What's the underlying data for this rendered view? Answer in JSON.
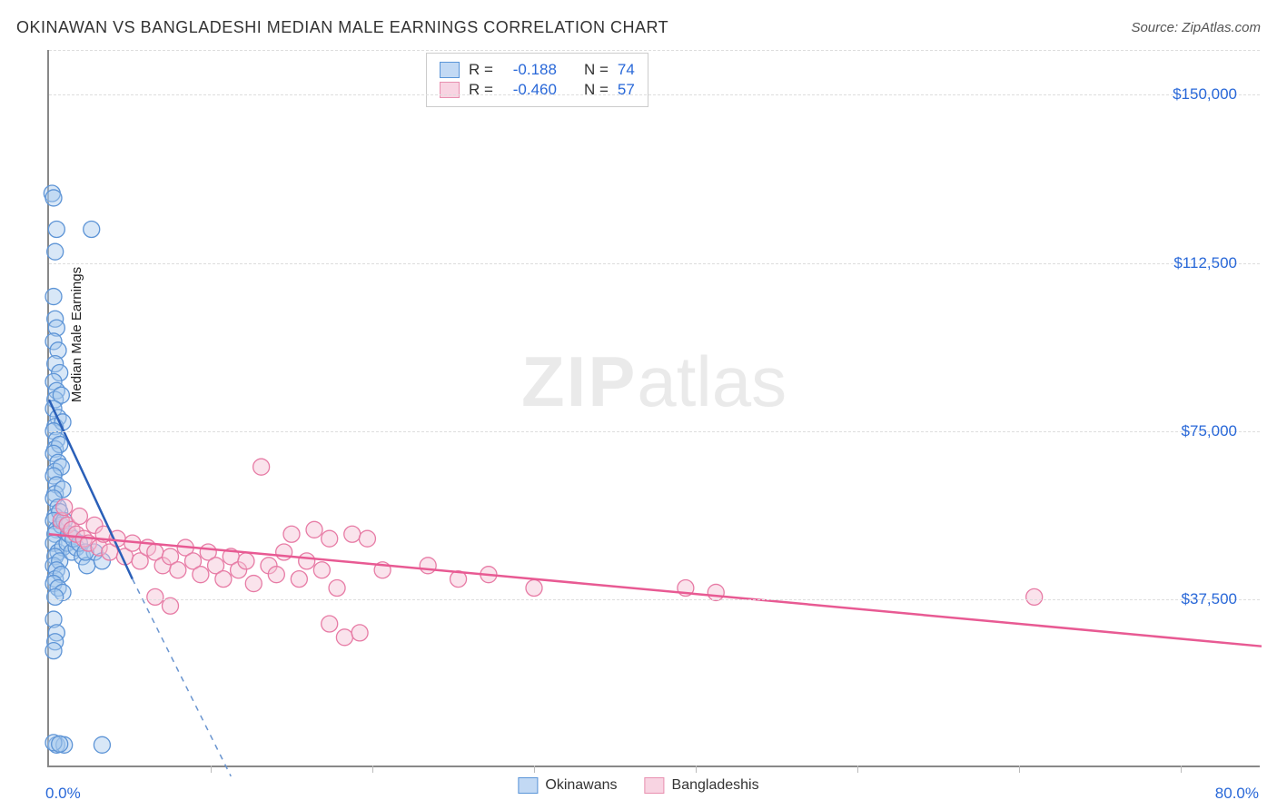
{
  "header": {
    "title": "OKINAWAN VS BANGLADESHI MEDIAN MALE EARNINGS CORRELATION CHART",
    "source_label": "Source: ZipAtlas.com"
  },
  "watermark": {
    "zip": "ZIP",
    "rest": "atlas"
  },
  "chart": {
    "type": "scatter",
    "y_axis_label": "Median Male Earnings",
    "xlim": [
      0,
      80
    ],
    "ylim": [
      0,
      160000
    ],
    "x_tick_step_pct": 13.33,
    "y_ticks": [
      37500,
      75000,
      112500,
      150000
    ],
    "y_tick_labels": [
      "$37,500",
      "$75,000",
      "$112,500",
      "$150,000"
    ],
    "x_min_label": "0.0%",
    "x_max_label": "80.0%",
    "background_color": "#ffffff",
    "grid_color": "#dddddd",
    "axis_color": "#888888",
    "marker_radius": 9,
    "marker_opacity": 0.45,
    "series": [
      {
        "name": "Okinawans",
        "color_fill": "#a8c9ed",
        "color_stroke": "#5d94d6",
        "R": "-0.188",
        "N": "74",
        "regression": {
          "x1": 0,
          "y1": 82000,
          "x2": 5.5,
          "y2": 42000,
          "solid_until_x": 5.5,
          "dash_to_x": 12,
          "dash_to_y": -2000,
          "width": 2.5
        },
        "points": [
          [
            0.2,
            128000
          ],
          [
            0.3,
            127000
          ],
          [
            0.5,
            120000
          ],
          [
            2.8,
            120000
          ],
          [
            0.4,
            115000
          ],
          [
            0.3,
            105000
          ],
          [
            0.4,
            100000
          ],
          [
            0.5,
            98000
          ],
          [
            0.3,
            95000
          ],
          [
            0.6,
            93000
          ],
          [
            0.4,
            90000
          ],
          [
            0.7,
            88000
          ],
          [
            0.3,
            86000
          ],
          [
            0.5,
            84000
          ],
          [
            0.4,
            82000
          ],
          [
            0.8,
            83000
          ],
          [
            0.3,
            80000
          ],
          [
            0.6,
            78000
          ],
          [
            0.4,
            76000
          ],
          [
            0.9,
            77000
          ],
          [
            0.3,
            75000
          ],
          [
            0.5,
            73000
          ],
          [
            0.4,
            71000
          ],
          [
            0.7,
            72000
          ],
          [
            0.3,
            70000
          ],
          [
            0.6,
            68000
          ],
          [
            0.4,
            66000
          ],
          [
            0.8,
            67000
          ],
          [
            0.3,
            65000
          ],
          [
            0.5,
            63000
          ],
          [
            0.4,
            61000
          ],
          [
            0.9,
            62000
          ],
          [
            0.3,
            60000
          ],
          [
            0.6,
            58000
          ],
          [
            0.4,
            56000
          ],
          [
            0.7,
            57000
          ],
          [
            0.3,
            55000
          ],
          [
            0.5,
            53000
          ],
          [
            0.8,
            54000
          ],
          [
            0.4,
            52000
          ],
          [
            0.3,
            50000
          ],
          [
            0.6,
            48000
          ],
          [
            0.9,
            49000
          ],
          [
            0.4,
            47000
          ],
          [
            0.3,
            45000
          ],
          [
            0.7,
            46000
          ],
          [
            0.5,
            44000
          ],
          [
            0.4,
            42000
          ],
          [
            0.8,
            43000
          ],
          [
            0.3,
            41000
          ],
          [
            0.6,
            40000
          ],
          [
            0.9,
            39000
          ],
          [
            0.4,
            38000
          ],
          [
            1.2,
            50000
          ],
          [
            1.5,
            48000
          ],
          [
            1.8,
            49000
          ],
          [
            2.2,
            47000
          ],
          [
            2.5,
            45000
          ],
          [
            3.0,
            48000
          ],
          [
            3.5,
            46000
          ],
          [
            1.0,
            55000
          ],
          [
            1.3,
            52000
          ],
          [
            1.6,
            51000
          ],
          [
            2.0,
            50000
          ],
          [
            2.4,
            48000
          ],
          [
            0.3,
            33000
          ],
          [
            0.5,
            30000
          ],
          [
            0.4,
            28000
          ],
          [
            0.3,
            26000
          ],
          [
            0.5,
            5000
          ],
          [
            1.0,
            5000
          ],
          [
            3.5,
            5000
          ],
          [
            0.3,
            5500
          ],
          [
            0.7,
            5200
          ]
        ]
      },
      {
        "name": "Bangladeshis",
        "color_fill": "#f5c1d4",
        "color_stroke": "#e77ba5",
        "R": "-0.460",
        "N": "57",
        "regression": {
          "x1": 0,
          "y1": 52000,
          "x2": 80,
          "y2": 27000,
          "width": 2.5
        },
        "points": [
          [
            0.8,
            55000
          ],
          [
            1.2,
            54000
          ],
          [
            1.5,
            53000
          ],
          [
            1.8,
            52000
          ],
          [
            2.0,
            56000
          ],
          [
            2.3,
            51000
          ],
          [
            2.6,
            50000
          ],
          [
            3.0,
            54000
          ],
          [
            3.3,
            49000
          ],
          [
            3.6,
            52000
          ],
          [
            4.0,
            48000
          ],
          [
            4.5,
            51000
          ],
          [
            5.0,
            47000
          ],
          [
            5.5,
            50000
          ],
          [
            6.0,
            46000
          ],
          [
            6.5,
            49000
          ],
          [
            7.0,
            48000
          ],
          [
            7.5,
            45000
          ],
          [
            8.0,
            47000
          ],
          [
            8.5,
            44000
          ],
          [
            9.0,
            49000
          ],
          [
            9.5,
            46000
          ],
          [
            10.0,
            43000
          ],
          [
            10.5,
            48000
          ],
          [
            11.0,
            45000
          ],
          [
            11.5,
            42000
          ],
          [
            12.0,
            47000
          ],
          [
            12.5,
            44000
          ],
          [
            13.0,
            46000
          ],
          [
            13.5,
            41000
          ],
          [
            14.0,
            67000
          ],
          [
            14.5,
            45000
          ],
          [
            15.0,
            43000
          ],
          [
            15.5,
            48000
          ],
          [
            16.0,
            52000
          ],
          [
            16.5,
            42000
          ],
          [
            17.0,
            46000
          ],
          [
            17.5,
            53000
          ],
          [
            18.0,
            44000
          ],
          [
            18.5,
            51000
          ],
          [
            19.0,
            40000
          ],
          [
            7.0,
            38000
          ],
          [
            8.0,
            36000
          ],
          [
            20.0,
            52000
          ],
          [
            21.0,
            51000
          ],
          [
            22.0,
            44000
          ],
          [
            19.5,
            29000
          ],
          [
            20.5,
            30000
          ],
          [
            18.5,
            32000
          ],
          [
            25.0,
            45000
          ],
          [
            27.0,
            42000
          ],
          [
            29.0,
            43000
          ],
          [
            32.0,
            40000
          ],
          [
            42.0,
            40000
          ],
          [
            44.0,
            39000
          ],
          [
            65.0,
            38000
          ],
          [
            1.0,
            58000
          ]
        ]
      }
    ]
  },
  "stats_legend": {
    "r_label": "R =",
    "n_label": "N ="
  },
  "bottom_legend": {
    "series1": "Okinawans",
    "series2": "Bangladeshis"
  }
}
